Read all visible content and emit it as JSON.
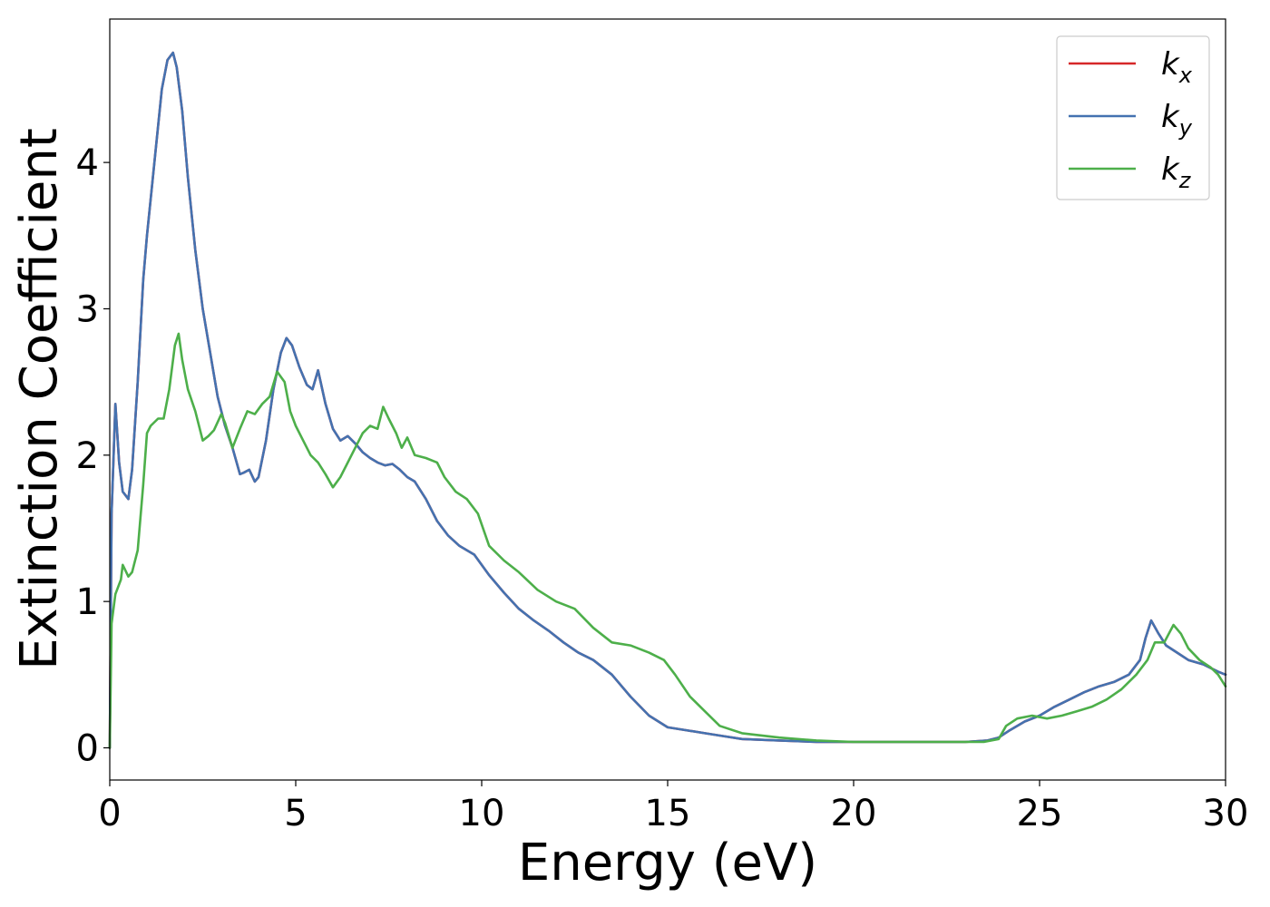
{
  "chart_data": {
    "type": "line",
    "title": "",
    "xlabel": "Energy (eV)",
    "ylabel": "Extinction Coefficient",
    "xlim": [
      0,
      30
    ],
    "ylim": [
      -0.22,
      4.98
    ],
    "x_ticks": [
      0,
      5,
      10,
      15,
      20,
      25,
      30
    ],
    "y_ticks": [
      0,
      1,
      2,
      3,
      4
    ],
    "grid": false,
    "legend_position": "top-right",
    "series": [
      {
        "name": "k_x",
        "label_main": "k",
        "label_sub": "x",
        "color": "#d62728",
        "x": [
          0,
          0.05,
          0.15,
          0.25,
          0.35,
          0.5,
          0.6,
          0.75,
          0.9,
          1.0,
          1.2,
          1.4,
          1.55,
          1.7,
          1.8,
          1.95,
          2.1,
          2.3,
          2.5,
          2.7,
          2.9,
          3.1,
          3.3,
          3.5,
          3.6,
          3.75,
          3.9,
          4.0,
          4.2,
          4.4,
          4.6,
          4.75,
          4.9,
          5.1,
          5.3,
          5.45,
          5.6,
          5.8,
          6.0,
          6.2,
          6.4,
          6.6,
          6.8,
          7.0,
          7.2,
          7.4,
          7.6,
          7.8,
          8.0,
          8.2,
          8.5,
          8.8,
          9.1,
          9.4,
          9.8,
          10.2,
          10.6,
          11.0,
          11.4,
          11.8,
          12.2,
          12.6,
          13.0,
          13.5,
          14.0,
          14.5,
          15.0,
          15.5,
          16.0,
          16.5,
          17.0,
          18.0,
          19.0,
          20.0,
          21.0,
          22.0,
          23.0,
          23.6,
          23.9,
          24.2,
          24.6,
          25.0,
          25.4,
          25.8,
          26.2,
          26.6,
          27.0,
          27.4,
          27.7,
          27.85,
          28.0,
          28.2,
          28.4,
          28.7,
          29.0,
          29.4,
          29.8,
          30.0
        ],
        "values": [
          0.0,
          1.6,
          2.35,
          1.95,
          1.75,
          1.7,
          1.9,
          2.5,
          3.2,
          3.5,
          4.0,
          4.5,
          4.7,
          4.75,
          4.65,
          4.35,
          3.9,
          3.4,
          3.0,
          2.7,
          2.4,
          2.2,
          2.05,
          1.87,
          1.88,
          1.9,
          1.82,
          1.85,
          2.1,
          2.45,
          2.7,
          2.8,
          2.75,
          2.6,
          2.48,
          2.45,
          2.58,
          2.35,
          2.18,
          2.1,
          2.13,
          2.08,
          2.02,
          1.98,
          1.95,
          1.93,
          1.94,
          1.9,
          1.85,
          1.82,
          1.7,
          1.55,
          1.45,
          1.38,
          1.32,
          1.18,
          1.06,
          0.95,
          0.87,
          0.8,
          0.72,
          0.65,
          0.6,
          0.5,
          0.35,
          0.22,
          0.14,
          0.12,
          0.1,
          0.08,
          0.06,
          0.05,
          0.04,
          0.04,
          0.04,
          0.04,
          0.04,
          0.05,
          0.07,
          0.12,
          0.18,
          0.22,
          0.28,
          0.33,
          0.38,
          0.42,
          0.45,
          0.5,
          0.6,
          0.75,
          0.87,
          0.78,
          0.7,
          0.65,
          0.6,
          0.57,
          0.52,
          0.5
        ]
      },
      {
        "name": "k_y",
        "label_main": "k",
        "label_sub": "y",
        "color": "#4472b0",
        "x": [
          0,
          0.05,
          0.15,
          0.25,
          0.35,
          0.5,
          0.6,
          0.75,
          0.9,
          1.0,
          1.2,
          1.4,
          1.55,
          1.7,
          1.8,
          1.95,
          2.1,
          2.3,
          2.5,
          2.7,
          2.9,
          3.1,
          3.3,
          3.5,
          3.6,
          3.75,
          3.9,
          4.0,
          4.2,
          4.4,
          4.6,
          4.75,
          4.9,
          5.1,
          5.3,
          5.45,
          5.6,
          5.8,
          6.0,
          6.2,
          6.4,
          6.6,
          6.8,
          7.0,
          7.2,
          7.4,
          7.6,
          7.8,
          8.0,
          8.2,
          8.5,
          8.8,
          9.1,
          9.4,
          9.8,
          10.2,
          10.6,
          11.0,
          11.4,
          11.8,
          12.2,
          12.6,
          13.0,
          13.5,
          14.0,
          14.5,
          15.0,
          15.5,
          16.0,
          16.5,
          17.0,
          18.0,
          19.0,
          20.0,
          21.0,
          22.0,
          23.0,
          23.6,
          23.9,
          24.2,
          24.6,
          25.0,
          25.4,
          25.8,
          26.2,
          26.6,
          27.0,
          27.4,
          27.7,
          27.85,
          28.0,
          28.2,
          28.4,
          28.7,
          29.0,
          29.4,
          29.8,
          30.0
        ],
        "values": [
          0.0,
          1.6,
          2.35,
          1.95,
          1.75,
          1.7,
          1.9,
          2.5,
          3.2,
          3.5,
          4.0,
          4.5,
          4.7,
          4.75,
          4.65,
          4.35,
          3.9,
          3.4,
          3.0,
          2.7,
          2.4,
          2.2,
          2.05,
          1.87,
          1.88,
          1.9,
          1.82,
          1.85,
          2.1,
          2.45,
          2.7,
          2.8,
          2.75,
          2.6,
          2.48,
          2.45,
          2.58,
          2.35,
          2.18,
          2.1,
          2.13,
          2.08,
          2.02,
          1.98,
          1.95,
          1.93,
          1.94,
          1.9,
          1.85,
          1.82,
          1.7,
          1.55,
          1.45,
          1.38,
          1.32,
          1.18,
          1.06,
          0.95,
          0.87,
          0.8,
          0.72,
          0.65,
          0.6,
          0.5,
          0.35,
          0.22,
          0.14,
          0.12,
          0.1,
          0.08,
          0.06,
          0.05,
          0.04,
          0.04,
          0.04,
          0.04,
          0.04,
          0.05,
          0.07,
          0.12,
          0.18,
          0.22,
          0.28,
          0.33,
          0.38,
          0.42,
          0.45,
          0.5,
          0.6,
          0.75,
          0.87,
          0.78,
          0.7,
          0.65,
          0.6,
          0.57,
          0.52,
          0.5
        ]
      },
      {
        "name": "k_z",
        "label_main": "k",
        "label_sub": "z",
        "color": "#4daf4a",
        "x": [
          0,
          0.05,
          0.15,
          0.3,
          0.35,
          0.5,
          0.6,
          0.75,
          0.9,
          1.0,
          1.1,
          1.3,
          1.45,
          1.6,
          1.75,
          1.85,
          1.95,
          2.1,
          2.3,
          2.5,
          2.65,
          2.8,
          3.0,
          3.1,
          3.3,
          3.5,
          3.7,
          3.9,
          4.1,
          4.3,
          4.5,
          4.7,
          4.85,
          5.0,
          5.2,
          5.4,
          5.6,
          5.8,
          6.0,
          6.2,
          6.4,
          6.6,
          6.8,
          7.0,
          7.2,
          7.35,
          7.5,
          7.7,
          7.85,
          8.0,
          8.2,
          8.5,
          8.8,
          9.0,
          9.3,
          9.6,
          9.9,
          10.2,
          10.6,
          11.0,
          11.5,
          12.0,
          12.5,
          13.0,
          13.5,
          14.0,
          14.5,
          14.9,
          15.2,
          15.6,
          16.0,
          16.4,
          17.0,
          18.0,
          19.0,
          20.0,
          21.0,
          22.0,
          23.0,
          23.5,
          23.9,
          24.1,
          24.4,
          24.8,
          25.2,
          25.6,
          26.0,
          26.4,
          26.8,
          27.2,
          27.6,
          27.9,
          28.1,
          28.35,
          28.6,
          28.8,
          29.0,
          29.3,
          29.6,
          29.8,
          30.0
        ],
        "values": [
          0.0,
          0.85,
          1.05,
          1.15,
          1.25,
          1.17,
          1.2,
          1.35,
          1.8,
          2.15,
          2.2,
          2.25,
          2.25,
          2.45,
          2.75,
          2.83,
          2.65,
          2.45,
          2.3,
          2.1,
          2.13,
          2.17,
          2.28,
          2.22,
          2.05,
          2.18,
          2.3,
          2.28,
          2.35,
          2.4,
          2.57,
          2.5,
          2.3,
          2.2,
          2.1,
          2.0,
          1.95,
          1.87,
          1.78,
          1.85,
          1.95,
          2.05,
          2.15,
          2.2,
          2.18,
          2.33,
          2.25,
          2.15,
          2.05,
          2.12,
          2.0,
          1.98,
          1.95,
          1.85,
          1.75,
          1.7,
          1.6,
          1.38,
          1.28,
          1.2,
          1.08,
          1.0,
          0.95,
          0.82,
          0.72,
          0.7,
          0.65,
          0.6,
          0.5,
          0.35,
          0.25,
          0.15,
          0.1,
          0.07,
          0.05,
          0.04,
          0.04,
          0.04,
          0.04,
          0.04,
          0.06,
          0.15,
          0.2,
          0.22,
          0.2,
          0.22,
          0.25,
          0.28,
          0.33,
          0.4,
          0.5,
          0.6,
          0.72,
          0.72,
          0.84,
          0.78,
          0.68,
          0.6,
          0.55,
          0.5,
          0.42
        ]
      }
    ]
  }
}
